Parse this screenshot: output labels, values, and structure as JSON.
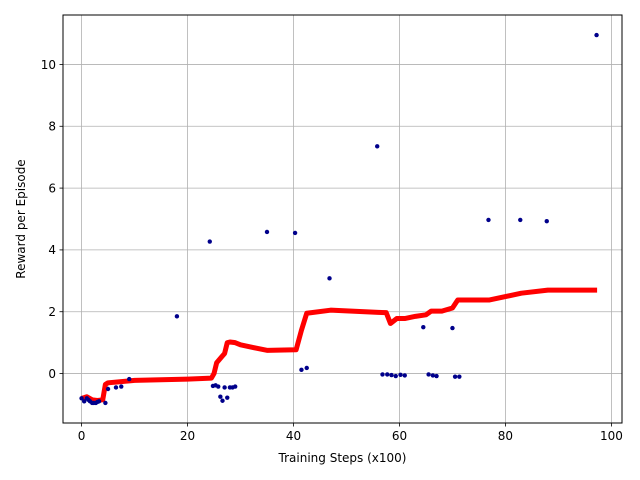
{
  "chart_data": {
    "type": "scatter",
    "title": "",
    "xlabel": "Training Steps (x100)",
    "ylabel": "Reward per Episode",
    "xlim": [
      -3.5,
      102
    ],
    "ylim": [
      -1.6,
      11.6
    ],
    "xticks": [
      0,
      20,
      40,
      60,
      80,
      100
    ],
    "yticks": [
      0,
      2,
      4,
      6,
      8,
      10
    ],
    "grid": true,
    "colors": {
      "points": "#00008b",
      "line": "#ff0000",
      "grid": "#b0b0b0"
    },
    "series": [
      {
        "kind": "scatter",
        "x": [
          0.0,
          0.5,
          1.0,
          1.3,
          1.6,
          2.0,
          2.3,
          2.7,
          3.0,
          3.3,
          4.5,
          5.0,
          6.5,
          7.5,
          9.0,
          18.0,
          24.2,
          24.8,
          25.3,
          25.8,
          26.2,
          26.6,
          27.0,
          27.5,
          28.0,
          28.5,
          29.0,
          35.0,
          40.3,
          41.5,
          42.5,
          46.8,
          55.8,
          56.8,
          57.7,
          58.5,
          59.3,
          60.2,
          61.0,
          64.5,
          65.5,
          66.3,
          67.0,
          70.0,
          70.5,
          71.3,
          76.8,
          82.8,
          87.8,
          97.2
        ],
        "y": [
          -0.8,
          -0.9,
          -0.8,
          -0.85,
          -0.9,
          -0.95,
          -0.95,
          -0.95,
          -0.92,
          -0.9,
          -0.95,
          -0.5,
          -0.45,
          -0.42,
          -0.18,
          1.85,
          4.27,
          -0.4,
          -0.38,
          -0.42,
          -0.75,
          -0.88,
          -0.45,
          -0.78,
          -0.45,
          -0.45,
          -0.42,
          4.58,
          4.55,
          0.12,
          0.18,
          3.08,
          7.35,
          -0.03,
          -0.03,
          -0.05,
          -0.08,
          -0.04,
          -0.06,
          1.5,
          -0.03,
          -0.06,
          -0.08,
          1.47,
          -0.1,
          -0.1,
          4.97,
          4.97,
          4.93,
          10.95
        ]
      },
      {
        "kind": "line",
        "x": [
          0,
          0.5,
          1,
          1.5,
          2,
          3,
          4,
          4.5,
          5,
          7,
          10,
          15,
          20,
          24.5,
          25,
          25.5,
          26.5,
          27,
          27.5,
          28,
          29,
          30,
          33,
          35,
          40.5,
          41.5,
          42.5,
          47,
          56,
          57.5,
          58.3,
          59.5,
          61,
          63,
          65,
          66,
          68,
          70,
          71,
          74,
          77,
          83,
          88,
          93,
          97.3
        ],
        "y": [
          -0.8,
          -0.78,
          -0.75,
          -0.8,
          -0.85,
          -0.87,
          -0.85,
          -0.35,
          -0.3,
          -0.27,
          -0.22,
          -0.2,
          -0.18,
          -0.15,
          0.0,
          0.35,
          0.55,
          0.65,
          1.0,
          1.02,
          1.0,
          0.93,
          0.82,
          0.75,
          0.77,
          1.4,
          1.95,
          2.05,
          1.98,
          1.97,
          1.62,
          1.78,
          1.78,
          1.85,
          1.9,
          2.02,
          2.02,
          2.12,
          2.38,
          2.38,
          2.38,
          2.6,
          2.7,
          2.7,
          2.7
        ]
      }
    ]
  }
}
